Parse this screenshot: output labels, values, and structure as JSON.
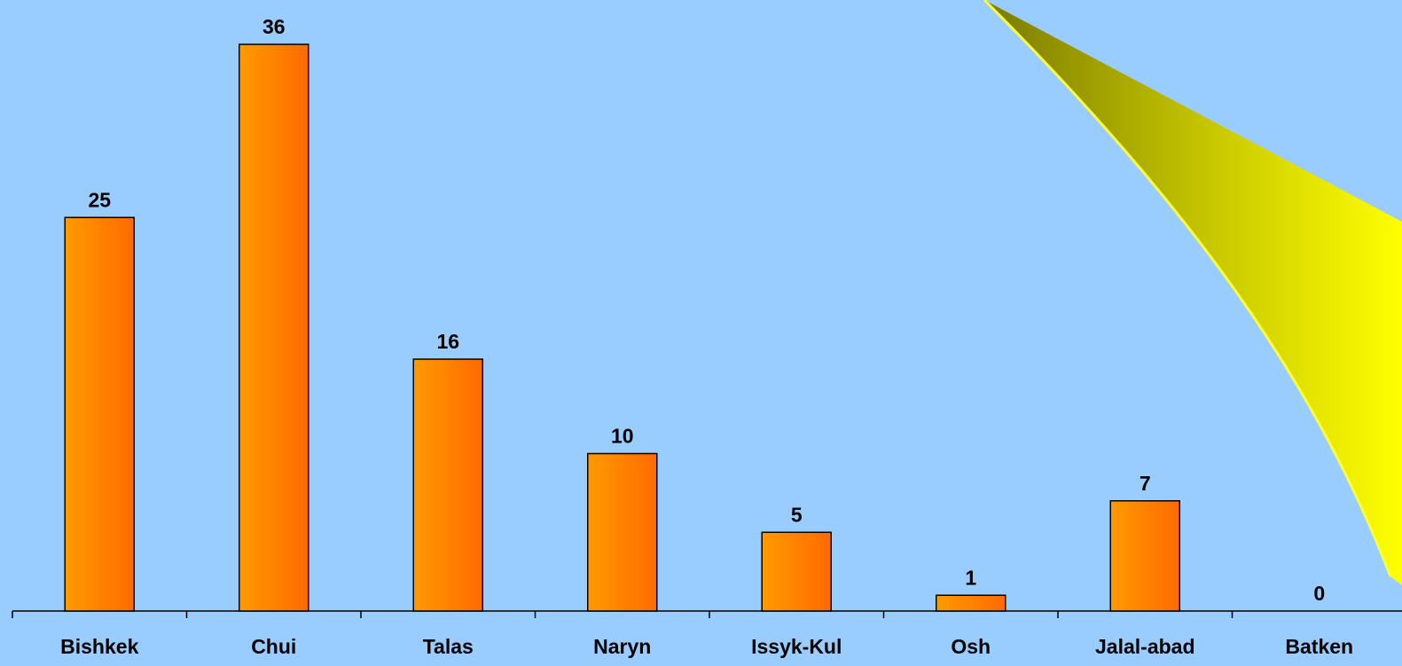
{
  "chart_data": {
    "type": "bar",
    "categories": [
      "Bishkek",
      "Chui",
      "Talas",
      "Naryn",
      "Issyk-Kul",
      "Osh",
      "Jalal-abad",
      "Batken"
    ],
    "values": [
      25,
      36,
      16,
      10,
      5,
      1,
      7,
      0
    ],
    "colors": [
      "#ff9a00",
      "#ff6a00"
    ]
  }
}
